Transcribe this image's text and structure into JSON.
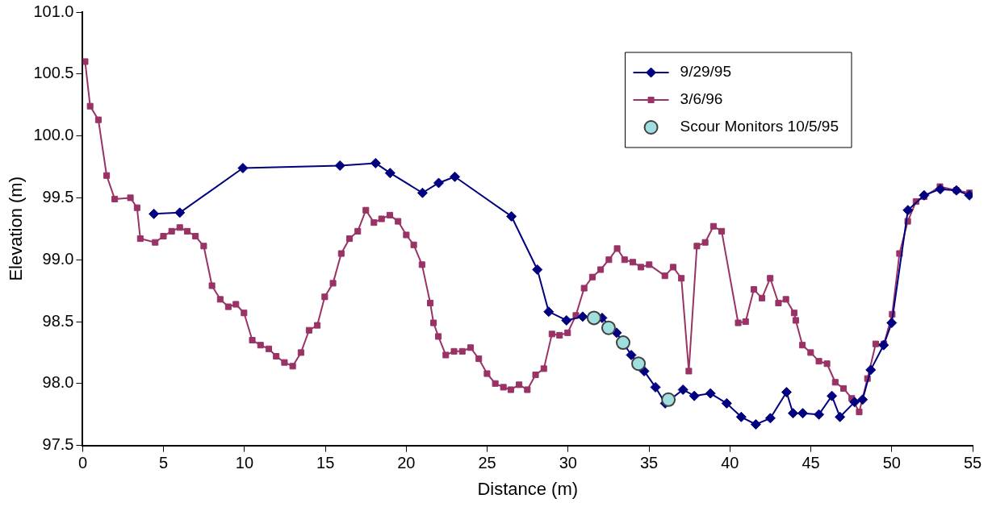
{
  "chart_data": {
    "type": "line",
    "xlabel": "Distance (m)",
    "ylabel": "Elevation (m)",
    "xlim": [
      0,
      55
    ],
    "xticks": [
      0,
      5,
      10,
      15,
      20,
      25,
      30,
      35,
      40,
      45,
      50,
      55
    ],
    "ylim": [
      97.5,
      101
    ],
    "yticks": [
      97.5,
      {
        "value": 98,
        "label": "98.0"
      },
      98.5,
      {
        "value": 99,
        "label": "99.0"
      },
      99.5,
      {
        "value": 100,
        "label": "100.0"
      },
      100.5,
      {
        "value": 101,
        "label": "101.0"
      }
    ],
    "grid": false,
    "legend": "top right",
    "line_style": "solid",
    "series": [
      {
        "name": "9/29/95",
        "type": "line",
        "marker": "diamond",
        "color": "#000080",
        "x": [
          4.4,
          6.0,
          9.9,
          15.9,
          18.1,
          19.0,
          21.0,
          22.0,
          23.0,
          26.5,
          28.1,
          28.8,
          29.9,
          30.9,
          32.1,
          33.0,
          33.9,
          34.7,
          35.4,
          36.0,
          37.1,
          37.8,
          38.8,
          39.8,
          40.7,
          41.6,
          42.5,
          43.5,
          43.9,
          44.5,
          45.5,
          46.3,
          46.8,
          47.7,
          48.2,
          48.7,
          49.5,
          50.0,
          51.0,
          52.0,
          53.0,
          54.0,
          54.8
        ],
        "values": [
          99.37,
          99.38,
          99.74,
          99.76,
          99.78,
          99.7,
          99.54,
          99.62,
          99.67,
          99.35,
          98.92,
          98.58,
          98.51,
          98.54,
          98.53,
          98.41,
          98.23,
          98.1,
          97.97,
          97.84,
          97.95,
          97.9,
          97.92,
          97.84,
          97.73,
          97.67,
          97.72,
          97.93,
          97.76,
          97.76,
          97.75,
          97.9,
          97.73,
          97.85,
          97.87,
          98.11,
          98.31,
          98.49,
          99.4,
          99.52,
          99.57,
          99.56,
          99.52
        ]
      },
      {
        "name": "3/6/96",
        "type": "line",
        "marker": "square",
        "color": "#993366",
        "x": [
          0.15,
          0.46,
          0.97,
          1.48,
          1.98,
          2.95,
          3.36,
          3.56,
          4.48,
          4.99,
          5.5,
          6.0,
          6.46,
          6.97,
          7.48,
          7.99,
          8.5,
          9.0,
          9.47,
          9.97,
          10.48,
          10.99,
          11.5,
          11.96,
          12.47,
          12.98,
          13.49,
          13.99,
          14.5,
          14.96,
          15.47,
          15.98,
          16.49,
          17.0,
          17.5,
          18.0,
          18.47,
          18.98,
          19.49,
          20.0,
          20.46,
          20.97,
          21.48,
          21.68,
          21.98,
          22.44,
          22.95,
          23.46,
          23.97,
          24.48,
          24.99,
          25.5,
          26.0,
          26.46,
          26.97,
          27.48,
          27.99,
          28.5,
          29.0,
          29.47,
          29.97,
          30.48,
          30.99,
          31.5,
          32.01,
          32.52,
          33.03,
          33.49,
          34.0,
          34.5,
          35.01,
          35.98,
          36.49,
          37.0,
          37.46,
          37.96,
          38.47,
          38.98,
          39.49,
          40.51,
          40.97,
          41.48,
          41.98,
          42.49,
          43.0,
          43.46,
          43.97,
          44.07,
          44.48,
          44.99,
          45.5,
          46.0,
          46.51,
          47.02,
          47.53,
          47.99,
          48.5,
          49.01,
          49.52,
          50.03,
          50.48,
          50.99,
          51.5,
          52.01,
          52.98,
          53.99,
          54.81
        ],
        "values": [
          100.6,
          100.24,
          100.13,
          99.68,
          99.49,
          99.5,
          99.42,
          99.17,
          99.14,
          99.19,
          99.23,
          99.26,
          99.23,
          99.19,
          99.11,
          98.79,
          98.68,
          98.62,
          98.64,
          98.57,
          98.35,
          98.31,
          98.28,
          98.22,
          98.17,
          98.14,
          98.25,
          98.43,
          98.47,
          98.7,
          98.81,
          99.05,
          99.17,
          99.23,
          99.4,
          99.3,
          99.33,
          99.36,
          99.31,
          99.2,
          99.12,
          98.96,
          98.65,
          98.49,
          98.38,
          98.23,
          98.26,
          98.26,
          98.29,
          98.2,
          98.08,
          98.0,
          97.97,
          97.95,
          97.99,
          97.95,
          98.07,
          98.12,
          98.4,
          98.39,
          98.41,
          98.55,
          98.77,
          98.86,
          98.92,
          99.0,
          99.09,
          99.0,
          98.98,
          98.94,
          98.96,
          98.87,
          98.94,
          98.85,
          98.1,
          99.11,
          99.14,
          99.27,
          99.23,
          98.49,
          98.5,
          98.76,
          98.69,
          98.85,
          98.65,
          98.68,
          98.57,
          98.51,
          98.31,
          98.25,
          98.18,
          98.16,
          98.01,
          97.96,
          97.88,
          97.77,
          98.04,
          98.32,
          98.32,
          98.56,
          99.05,
          99.31,
          99.47,
          99.51,
          99.59,
          99.56,
          99.54
        ]
      },
      {
        "name": "Scour Monitors 10/5/95",
        "type": "scatter",
        "marker": "circle",
        "color": "#9fdfdf",
        "x": [
          31.6,
          32.5,
          33.4,
          34.35,
          36.2
        ],
        "values": [
          98.53,
          98.45,
          98.33,
          98.16,
          97.87
        ]
      }
    ]
  }
}
